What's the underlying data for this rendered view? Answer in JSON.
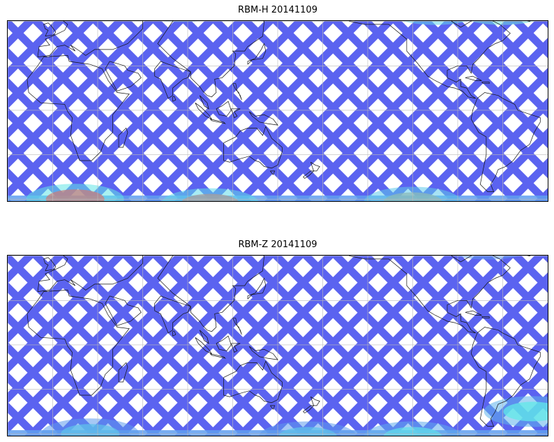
{
  "maps": [
    {
      "title": "RBM-H 20141109",
      "colormap": "jet",
      "colors": {
        "low": "#5b63f0",
        "mid": "#60e8e8",
        "high": "#f05050"
      },
      "hotspots": [
        {
          "lon": 15,
          "lat": -60,
          "level": 0.85
        },
        {
          "lon": 105,
          "lat": -63,
          "level": 0.75
        },
        {
          "lon": -60,
          "lat": 68,
          "level": 0.9
        },
        {
          "lon": -105,
          "lat": 68,
          "level": 0.7
        },
        {
          "lon": -120,
          "lat": -62,
          "level": 0.65
        },
        {
          "lon": 85,
          "lat": 70,
          "level": 0.5
        }
      ]
    },
    {
      "title": "RBM-Z 20141109",
      "colormap": "jet",
      "colors": {
        "low": "#5b63f0",
        "mid": "#60e8e8",
        "high": "#f0f060"
      },
      "hotspots": [
        {
          "lon": -40,
          "lat": -45,
          "level": 0.5
        },
        {
          "lon": -120,
          "lat": -62,
          "level": 0.45
        },
        {
          "lon": 170,
          "lat": -62,
          "level": 0.35
        },
        {
          "lon": -70,
          "lat": 68,
          "level": 0.35
        },
        {
          "lon": 25,
          "lat": -60,
          "level": 0.35
        }
      ]
    }
  ]
}
